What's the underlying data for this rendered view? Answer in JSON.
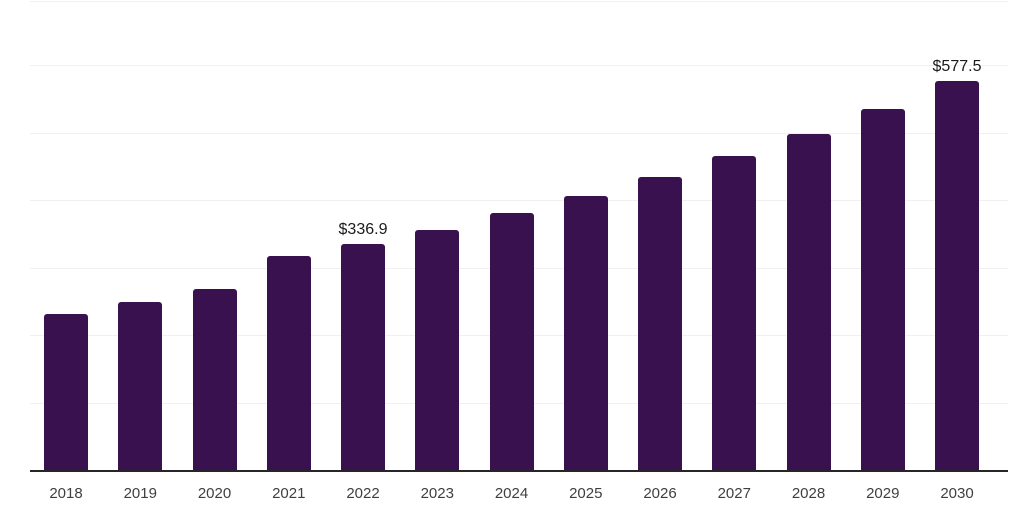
{
  "chart_data": {
    "type": "bar",
    "title": "",
    "xlabel": "",
    "ylabel": "",
    "categories": [
      "2018",
      "2019",
      "2020",
      "2021",
      "2022",
      "2023",
      "2024",
      "2025",
      "2026",
      "2027",
      "2028",
      "2029",
      "2030"
    ],
    "values": [
      233.0,
      250.5,
      270.0,
      318.0,
      336.9,
      357.7,
      382.4,
      407.2,
      435.8,
      467.3,
      499.5,
      536.5,
      577.5
    ],
    "value_labels": [
      "",
      "",
      "",
      "",
      "$336.9",
      "",
      "",
      "",
      "",
      "",
      "",
      "",
      "$577.5"
    ],
    "ylim": [
      0,
      700
    ],
    "gridline_step": 100,
    "grid_on": true,
    "legend_position": "none",
    "colors": {
      "bar": "#3A114F",
      "gridline": "#f0f0f0",
      "axis_line": "#262626",
      "value_label_text": "#1a1a1a",
      "tick_label_text": "#3f3f3f",
      "background": "#ffffff"
    }
  }
}
